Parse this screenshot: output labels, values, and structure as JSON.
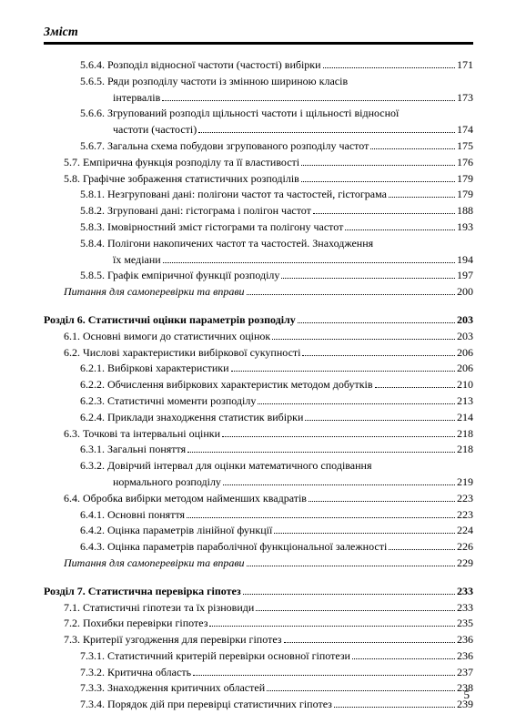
{
  "header": "Зміст",
  "page_number": "5",
  "entries": [
    {
      "indent": 2,
      "text": "5.6.4. Розподіл відносної частоти (частості) вибірки",
      "page": "171"
    },
    {
      "indent": 2,
      "text": "5.6.5. Ряди розподілу частоти із змінною шириною класів",
      "cont": "інтервалів",
      "page": "173"
    },
    {
      "indent": 2,
      "text": "5.6.6. Згрупований розподіл щільності частоти і щільності відносної",
      "cont": "частоти (частості)",
      "page": "174"
    },
    {
      "indent": 2,
      "text": "5.6.7. Загальна схема побудови згрупованого розподілу частот",
      "page": "175"
    },
    {
      "indent": 1,
      "text": "5.7. Емпірична функція розподілу та її властивості",
      "page": "176"
    },
    {
      "indent": 1,
      "text": "5.8. Графічне зображення статистичних розподілів",
      "page": "179"
    },
    {
      "indent": 2,
      "text": "5.8.1. Незгруповані дані: полігони частот та частостей, гістограма",
      "page": "179"
    },
    {
      "indent": 2,
      "text": "5.8.2. Згруповані дані: гістограма і полігон частот",
      "page": "188"
    },
    {
      "indent": 2,
      "text": "5.8.3. Імовірностний зміст гістограми та полігону частот",
      "page": "193"
    },
    {
      "indent": 2,
      "text": "5.8.4. Полігони накопичених частот та частостей. Знаходження",
      "cont": "їх медіани",
      "page": "194"
    },
    {
      "indent": 2,
      "text": "5.8.5. Графік емпіричної функції розподілу",
      "page": "197"
    },
    {
      "indent": 1,
      "text": "Питання для самоперевірки та вправи",
      "page": "200",
      "italic": true
    },
    {
      "indent": 0,
      "text": "Розділ 6. Статистичні оцінки параметрів розподілу",
      "page": "203",
      "bold": true,
      "gap": true
    },
    {
      "indent": 1,
      "text": "6.1. Основні вимоги до статистичних оцінок",
      "page": "203"
    },
    {
      "indent": 1,
      "text": "6.2. Числові характеристики вибіркової сукупності",
      "page": "206"
    },
    {
      "indent": 2,
      "text": "6.2.1. Вибіркові характеристики",
      "page": "206"
    },
    {
      "indent": 2,
      "text": "6.2.2. Обчислення вибіркових характеристик методом добутків",
      "page": "210"
    },
    {
      "indent": 2,
      "text": "6.2.3. Статистичні моменти розподілу",
      "page": "213"
    },
    {
      "indent": 2,
      "text": "6.2.4. Приклади знаходження статистик вибірки",
      "page": "214"
    },
    {
      "indent": 1,
      "text": "6.3. Точкові та інтервальні оцінки",
      "page": "218"
    },
    {
      "indent": 2,
      "text": "6.3.1. Загальні поняття",
      "page": "218"
    },
    {
      "indent": 2,
      "text": "6.3.2. Довірчий інтервал для оцінки математичного сподівання",
      "cont": "нормального розподілу",
      "page": "219"
    },
    {
      "indent": 1,
      "text": "6.4. Обробка вибірки методом найменших квадратів",
      "page": "223"
    },
    {
      "indent": 2,
      "text": "6.4.1. Основні поняття",
      "page": "223"
    },
    {
      "indent": 2,
      "text": "6.4.2. Оцінка параметрів лінійної функції",
      "page": "224"
    },
    {
      "indent": 2,
      "text": "6.4.3. Оцінка параметрів параболічної функціональної залежності",
      "page": "226"
    },
    {
      "indent": 1,
      "text": "Питання для самоперевірки та вправи",
      "page": "229",
      "italic": true
    },
    {
      "indent": 0,
      "text": "Розділ 7. Статистична перевірка гіпотез",
      "page": "233",
      "bold": true,
      "gap": true
    },
    {
      "indent": 1,
      "text": "7.1. Статистичні гіпотези та їх різновиди",
      "page": "233"
    },
    {
      "indent": 1,
      "text": "7.2. Похибки перевірки гіпотез",
      "page": "235"
    },
    {
      "indent": 1,
      "text": "7.3. Критерії узгодження для перевірки гіпотез",
      "page": "236"
    },
    {
      "indent": 2,
      "text": "7.3.1. Статистичний критерій перевірки основної гіпотези",
      "page": "236"
    },
    {
      "indent": 2,
      "text": "7.3.2. Критична область",
      "page": "237"
    },
    {
      "indent": 2,
      "text": "7.3.3. Знаходження критичних областей",
      "page": "238"
    },
    {
      "indent": 2,
      "text": "7.3.4. Порядок дій при перевірці статистичних гіпотез",
      "page": "239"
    }
  ]
}
